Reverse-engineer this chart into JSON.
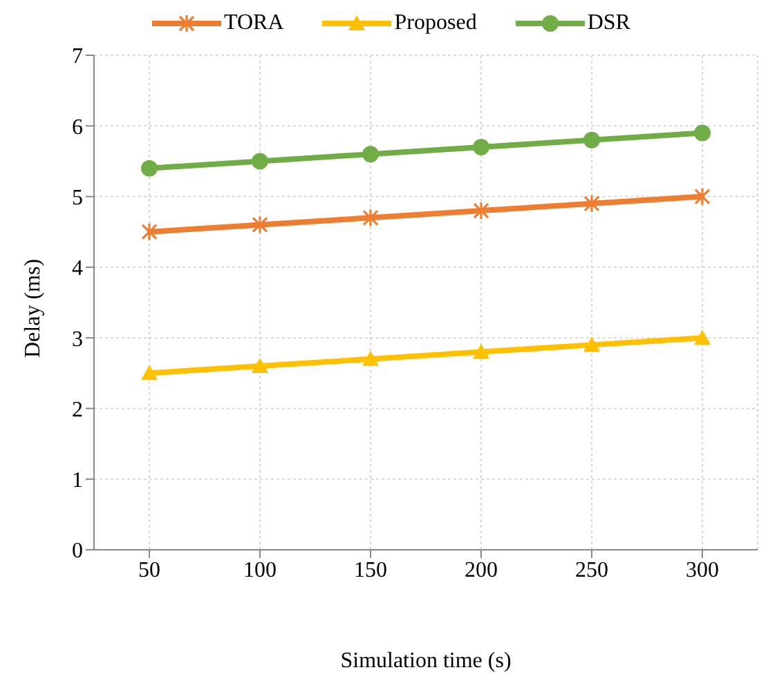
{
  "chart_data": {
    "type": "line",
    "xlabel": "Simulation time (s)",
    "ylabel": "Delay (ms)",
    "categories": [
      "50",
      "100",
      "150",
      "200",
      "250",
      "300"
    ],
    "series": [
      {
        "name": "TORA",
        "color": "#ed7d31",
        "marker": "cross",
        "values": [
          4.5,
          4.6,
          4.7,
          4.8,
          4.9,
          5.0
        ]
      },
      {
        "name": "Proposed",
        "color": "#ffc000",
        "marker": "triangle",
        "values": [
          2.5,
          2.6,
          2.7,
          2.8,
          2.9,
          3.0
        ]
      },
      {
        "name": "DSR",
        "color": "#70ad47",
        "marker": "circle",
        "values": [
          5.4,
          5.5,
          5.6,
          5.7,
          5.8,
          5.9
        ]
      }
    ],
    "ylim": [
      0,
      7
    ],
    "yticks": [
      0,
      1,
      2,
      3,
      4,
      5,
      6,
      7
    ],
    "grid": true,
    "legend": "top",
    "line_style": "solid"
  }
}
